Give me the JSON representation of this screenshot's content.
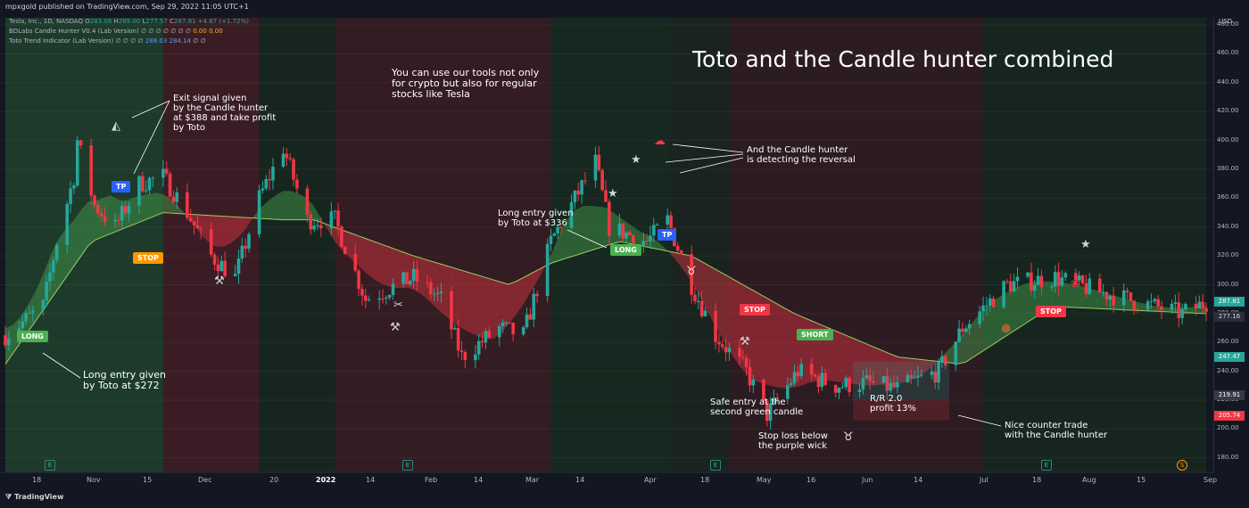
{
  "header": {
    "published": "mpxgold published on TradingView.com, Sep 29, 2022 11:05 UTC+1",
    "symbol_line": "Tesla, Inc., 1D, NASDAQ",
    "ohlc": {
      "o_label": "O",
      "o": "283.08",
      "h_label": "H",
      "h": "289.00",
      "l_label": "L",
      "l": "277.57",
      "c_label": "C",
      "c": "287.81",
      "chg": "+4.87 (+1.72%)"
    },
    "indicator1": {
      "name": "BDLabs Candle Hunter V0.4 (Lab Version)",
      "dots": "∅ ∅ ∅ ∅ ∅ ∅ ∅",
      "v1": "0.00",
      "v2": "0.00"
    },
    "indicator2": {
      "name": "Toto Trend Indicator (Lab Version)",
      "dots": "∅ ∅ ∅ ∅",
      "v1": "288.03",
      "v2": "284.14",
      "tail": "∅ ∅"
    }
  },
  "title": "Toto and the Candle hunter combined",
  "annotations": {
    "intro": "You can use our tools not only\nfor crypto but also for regular\nstocks like Tesla",
    "exit": "Exit signal given\nby the Candle hunter\nat $388 and take profit\nby Toto",
    "long1": "Long entry given\nby Toto at $272",
    "long2": "Long entry given\nby Toto at $336",
    "reversal": "And the Candle hunter\nis detecting the reversal",
    "safe": "Safe entry at the\nsecond green candle",
    "rr": "R/R 2.0\nprofit 13%",
    "stoploss": "Stop loss below\nthe purple wick",
    "counter": "Nice counter trade\nwith the Candle hunter"
  },
  "signals": {
    "long": "LONG",
    "tp": "TP",
    "stop": "STOP",
    "short": "SHORT",
    "stop_short": "STOP"
  },
  "axis": {
    "currency": "USD",
    "y_ticks": [
      "480.00",
      "460.00",
      "440.00",
      "420.00",
      "400.00",
      "380.00",
      "360.00",
      "340.00",
      "320.00",
      "300.00",
      "280.00",
      "260.00",
      "240.00",
      "220.00",
      "200.00",
      "180.00"
    ],
    "price_boxes": {
      "p1": "287.81",
      "p2": "277.16",
      "p3": "247.47",
      "p4": "219.91",
      "p5": "205.74"
    },
    "x_ticks": [
      "18",
      "Nov",
      "15",
      "Dec",
      "20",
      "2022",
      "14",
      "Feb",
      "14",
      "Mar",
      "14",
      "Apr",
      "18",
      "May",
      "16",
      "Jun",
      "14",
      "Jul",
      "18",
      "Aug",
      "15",
      "Sep"
    ]
  },
  "earnings_marker": "E",
  "dividend_marker": "S",
  "footer": "TradingView",
  "colors": {
    "bg": "#131722",
    "up": "#26a69a",
    "down": "#f23645",
    "bull_band": "#4caf50",
    "bear_band": "#f23645",
    "neutral": "#2962ff",
    "cyan": "#00e5ff"
  },
  "chart_data": {
    "type": "candlestick",
    "symbol": "TSLA",
    "interval": "1D",
    "title": "Toto and the Candle hunter combined",
    "ylim": [
      170,
      485
    ],
    "x_start": "2021-10-14",
    "x_end": "2022-09-29",
    "swing_path": [
      [
        "2021-10-14",
        265
      ],
      [
        "2021-10-25",
        285
      ],
      [
        "2021-10-29",
        330
      ],
      [
        "2021-11-03",
        375
      ],
      [
        "2021-11-04",
        400
      ],
      [
        "2021-11-09",
        355
      ],
      [
        "2021-11-15",
        340
      ],
      [
        "2021-11-22",
        370
      ],
      [
        "2021-11-29",
        375
      ],
      [
        "2021-12-06",
        350
      ],
      [
        "2021-12-13",
        320
      ],
      [
        "2021-12-20",
        305
      ],
      [
        "2021-12-27",
        360
      ],
      [
        "2022-01-03",
        395
      ],
      [
        "2022-01-10",
        345
      ],
      [
        "2022-01-18",
        345
      ],
      [
        "2022-01-27",
        290
      ],
      [
        "2022-02-10",
        305
      ],
      [
        "2022-02-18",
        290
      ],
      [
        "2022-02-24",
        250
      ],
      [
        "2022-03-07",
        270
      ],
      [
        "2022-03-14",
        265
      ],
      [
        "2022-03-22",
        330
      ],
      [
        "2022-04-04",
        385
      ],
      [
        "2022-04-08",
        340
      ],
      [
        "2022-04-19",
        330
      ],
      [
        "2022-04-25",
        345
      ],
      [
        "2022-05-02",
        300
      ],
      [
        "2022-05-09",
        265
      ],
      [
        "2022-05-18",
        240
      ],
      [
        "2022-05-24",
        210
      ],
      [
        "2022-06-02",
        240
      ],
      [
        "2022-06-13",
        230
      ],
      [
        "2022-06-22",
        232
      ],
      [
        "2022-07-01",
        228
      ],
      [
        "2022-07-13",
        240
      ],
      [
        "2022-07-20",
        270
      ],
      [
        "2022-08-02",
        300
      ],
      [
        "2022-08-16",
        305
      ],
      [
        "2022-08-29",
        295
      ],
      [
        "2022-09-22",
        280
      ],
      [
        "2022-09-29",
        287.81
      ]
    ],
    "toto_band": [
      [
        "2021-10-14",
        245
      ],
      [
        "2021-11-08",
        330
      ],
      [
        "2021-11-29",
        350
      ],
      [
        "2022-01-03",
        345
      ],
      [
        "2022-01-12",
        345
      ],
      [
        "2022-02-10",
        320
      ],
      [
        "2022-03-10",
        300
      ],
      [
        "2022-03-22",
        315
      ],
      [
        "2022-04-11",
        330
      ],
      [
        "2022-05-02",
        320
      ],
      [
        "2022-06-01",
        280
      ],
      [
        "2022-07-01",
        250
      ],
      [
        "2022-07-20",
        245
      ],
      [
        "2022-08-15",
        285
      ],
      [
        "2022-09-29",
        280
      ]
    ],
    "signals": [
      {
        "label": "LONG",
        "date": "2021-10-14",
        "price": 272
      },
      {
        "label": "TP",
        "date": "2021-11-09",
        "price": 388
      },
      {
        "label": "LONG",
        "date": "2022-03-22",
        "price": 336
      },
      {
        "label": "TP",
        "date": "2022-04-08",
        "price": 340
      },
      {
        "label": "STOP",
        "date": "2022-05-02",
        "price": 290
      },
      {
        "label": "SHORT",
        "date": "2022-05-13",
        "price": 262
      },
      {
        "label": "STOP",
        "date": "2022-07-26",
        "price": 285
      }
    ]
  }
}
